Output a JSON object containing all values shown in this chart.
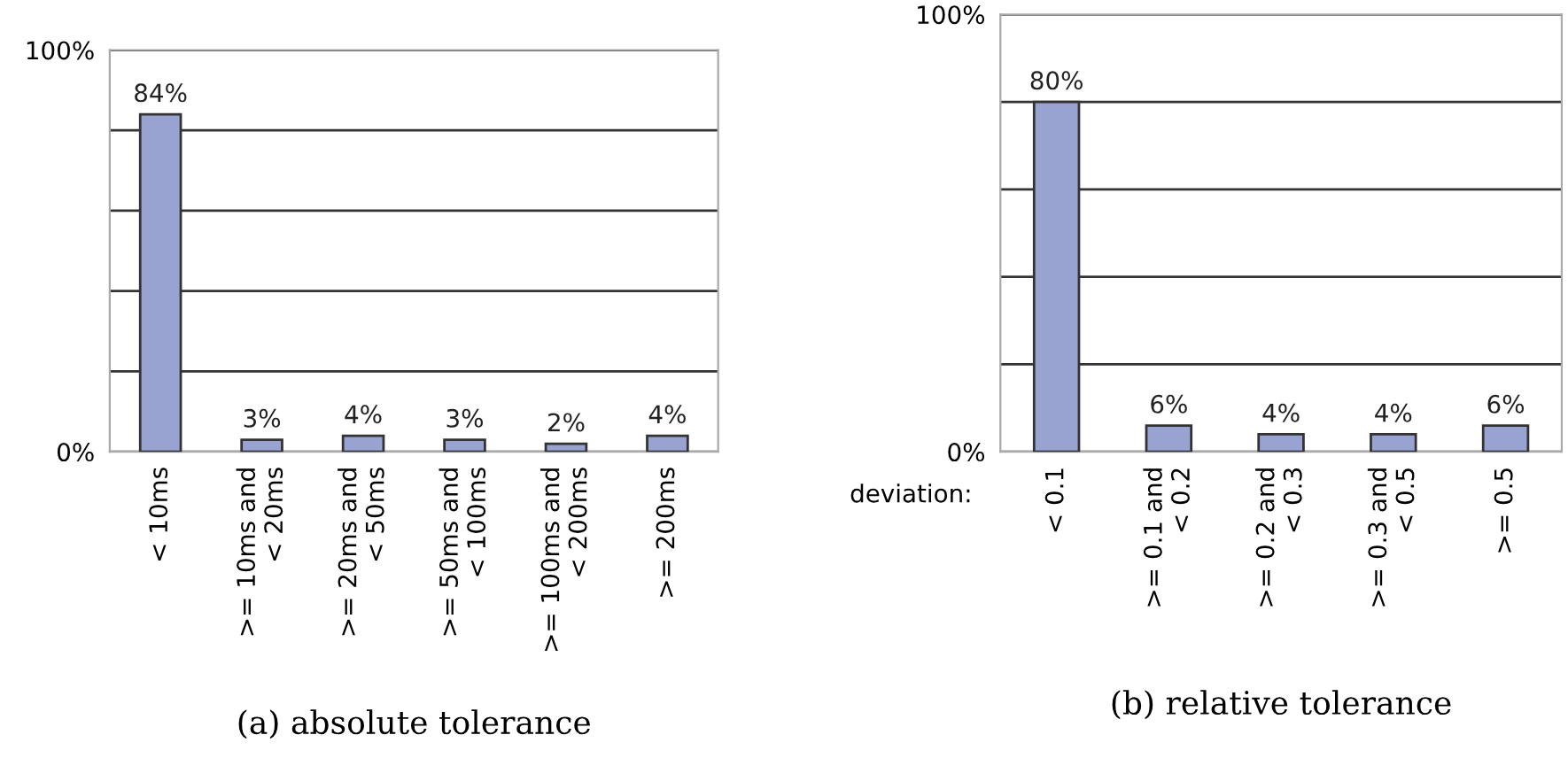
{
  "chart_data": [
    {
      "type": "bar",
      "title": "(a) absolute tolerance",
      "categories": [
        "< 10ms",
        ">= 10ms and\n< 20ms",
        ">= 20ms and\n< 50ms",
        ">= 50ms and\n< 100ms",
        ">= 100ms and\n< 200ms",
        ">= 200ms"
      ],
      "values": [
        84,
        3,
        4,
        3,
        2,
        4
      ],
      "value_labels": [
        "84%",
        "3%",
        "4%",
        "3%",
        "2%",
        "4%"
      ],
      "color": "#99a3d2",
      "ylim": [
        0,
        100
      ],
      "yticks": [
        {
          "value": 0,
          "label": "0%"
        },
        {
          "value": 20,
          "label": null
        },
        {
          "value": 40,
          "label": null
        },
        {
          "value": 60,
          "label": null
        },
        {
          "value": 80,
          "label": null
        },
        {
          "value": 100,
          "label": "100%"
        }
      ],
      "grid": "y"
    },
    {
      "type": "bar",
      "title": "(b) relative tolerance",
      "xlabel": "deviation:",
      "categories": [
        "< 0.1",
        ">= 0.1 and\n< 0.2",
        ">= 0.2 and\n< 0.3",
        ">= 0.3 and\n< 0.5",
        ">= 0.5"
      ],
      "values": [
        80,
        6,
        4,
        4,
        6
      ],
      "value_labels": [
        "80%",
        "6%",
        "4%",
        "4%",
        "6%"
      ],
      "color": "#99a3d2",
      "ylim": [
        0,
        100
      ],
      "yticks": [
        {
          "value": 0,
          "label": "0%"
        },
        {
          "value": 20,
          "label": null
        },
        {
          "value": 40,
          "label": null
        },
        {
          "value": 60,
          "label": null
        },
        {
          "value": 80,
          "label": null
        },
        {
          "value": 100,
          "label": "100%"
        }
      ],
      "grid": "y"
    }
  ]
}
